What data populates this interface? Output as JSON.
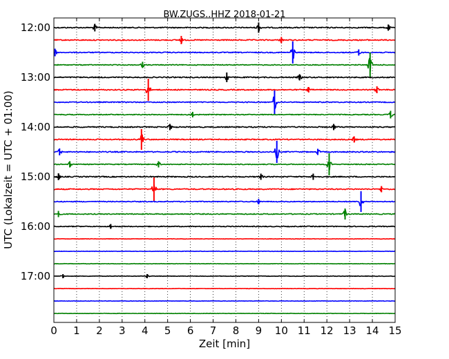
{
  "chart_data": {
    "type": "line",
    "title": "BW.ZUGS..HHZ 2018-01-21",
    "xlabel": "Zeit  [min]",
    "ylabel": "UTC (Lokalzeit = UTC + 01:00)",
    "xlim": [
      0,
      15
    ],
    "x_ticks": [
      0,
      1,
      2,
      3,
      4,
      5,
      6,
      7,
      8,
      9,
      10,
      11,
      12,
      13,
      14,
      15
    ],
    "y_tick_labels": [
      "12:00",
      "13:00",
      "14:00",
      "15:00",
      "16:00",
      "17:00"
    ],
    "grid": "vertical dotted",
    "color_cycle": [
      "#000000",
      "#ff0000",
      "#0000ff",
      "#008000"
    ],
    "series": [
      {
        "time": "12:00",
        "color": "#000000",
        "amplitude": 0.25,
        "events": [
          {
            "t": 1.8,
            "amp": 0.55
          },
          {
            "t": 9.0,
            "amp": 0.75
          },
          {
            "t": 14.7,
            "amp": 0.45
          }
        ]
      },
      {
        "time": "12:15",
        "color": "#ff0000",
        "amplitude": 0.25,
        "events": [
          {
            "t": 5.6,
            "amp": 0.6
          },
          {
            "t": 10.0,
            "amp": 0.45
          }
        ]
      },
      {
        "time": "12:30",
        "color": "#0000ff",
        "amplitude": 0.22,
        "events": [
          {
            "t": 0.05,
            "amp": 0.55
          },
          {
            "t": 10.5,
            "amp": 1.6
          },
          {
            "t": 13.4,
            "amp": 0.45
          }
        ]
      },
      {
        "time": "12:45",
        "color": "#008000",
        "amplitude": 0.2,
        "events": [
          {
            "t": 3.9,
            "amp": 0.45
          },
          {
            "t": 13.9,
            "amp": 1.8
          }
        ]
      },
      {
        "time": "13:00",
        "color": "#000000",
        "amplitude": 0.25,
        "events": [
          {
            "t": 7.6,
            "amp": 0.7
          },
          {
            "t": 10.8,
            "amp": 0.45
          }
        ]
      },
      {
        "time": "13:15",
        "color": "#ff0000",
        "amplitude": 0.25,
        "events": [
          {
            "t": 4.15,
            "amp": 1.6
          },
          {
            "t": 11.2,
            "amp": 0.4
          },
          {
            "t": 14.2,
            "amp": 0.5
          }
        ]
      },
      {
        "time": "13:30",
        "color": "#0000ff",
        "amplitude": 0.22,
        "events": [
          {
            "t": 9.7,
            "amp": 1.7
          }
        ]
      },
      {
        "time": "13:45",
        "color": "#008000",
        "amplitude": 0.2,
        "events": [
          {
            "t": 6.1,
            "amp": 0.4
          },
          {
            "t": 14.8,
            "amp": 0.55
          }
        ]
      },
      {
        "time": "14:00",
        "color": "#000000",
        "amplitude": 0.25,
        "events": [
          {
            "t": 5.1,
            "amp": 0.45
          },
          {
            "t": 12.3,
            "amp": 0.45
          }
        ]
      },
      {
        "time": "14:15",
        "color": "#ff0000",
        "amplitude": 0.25,
        "events": [
          {
            "t": 3.85,
            "amp": 1.5
          },
          {
            "t": 13.2,
            "amp": 0.45
          }
        ]
      },
      {
        "time": "14:30",
        "color": "#0000ff",
        "amplitude": 0.25,
        "events": [
          {
            "t": 0.25,
            "amp": 0.5
          },
          {
            "t": 9.8,
            "amp": 1.6
          },
          {
            "t": 11.6,
            "amp": 0.45
          }
        ]
      },
      {
        "time": "14:45",
        "color": "#008000",
        "amplitude": 0.2,
        "events": [
          {
            "t": 0.7,
            "amp": 0.45
          },
          {
            "t": 4.6,
            "amp": 0.45
          },
          {
            "t": 12.1,
            "amp": 1.6
          }
        ]
      },
      {
        "time": "15:00",
        "color": "#000000",
        "amplitude": 0.25,
        "events": [
          {
            "t": 0.2,
            "amp": 0.5
          },
          {
            "t": 9.1,
            "amp": 0.45
          },
          {
            "t": 11.4,
            "amp": 0.45
          }
        ]
      },
      {
        "time": "15:15",
        "color": "#ff0000",
        "amplitude": 0.25,
        "events": [
          {
            "t": 4.4,
            "amp": 1.7
          },
          {
            "t": 14.4,
            "amp": 0.45
          }
        ]
      },
      {
        "time": "15:30",
        "color": "#0000ff",
        "amplitude": 0.2,
        "events": [
          {
            "t": 9.0,
            "amp": 0.4
          },
          {
            "t": 13.5,
            "amp": 1.5
          }
        ]
      },
      {
        "time": "15:45",
        "color": "#008000",
        "amplitude": 0.22,
        "events": [
          {
            "t": 0.2,
            "amp": 0.45
          },
          {
            "t": 12.8,
            "amp": 0.8
          }
        ]
      },
      {
        "time": "16:00",
        "color": "#000000",
        "amplitude": 0.2,
        "events": [
          {
            "t": 2.5,
            "amp": 0.35
          }
        ]
      },
      {
        "time": "16:15",
        "color": "#ff0000",
        "amplitude": 0.1,
        "events": []
      },
      {
        "time": "16:30",
        "color": "#0000ff",
        "amplitude": 0.1,
        "events": []
      },
      {
        "time": "16:45",
        "color": "#008000",
        "amplitude": 0.1,
        "events": []
      },
      {
        "time": "17:00",
        "color": "#000000",
        "amplitude": 0.12,
        "events": [
          {
            "t": 0.4,
            "amp": 0.3
          },
          {
            "t": 4.1,
            "amp": 0.3
          }
        ]
      },
      {
        "time": "17:15",
        "color": "#ff0000",
        "amplitude": 0.1,
        "events": []
      },
      {
        "time": "17:30",
        "color": "#0000ff",
        "amplitude": 0.1,
        "events": []
      },
      {
        "time": "17:45",
        "color": "#008000",
        "amplitude": 0.1,
        "events": []
      }
    ]
  }
}
